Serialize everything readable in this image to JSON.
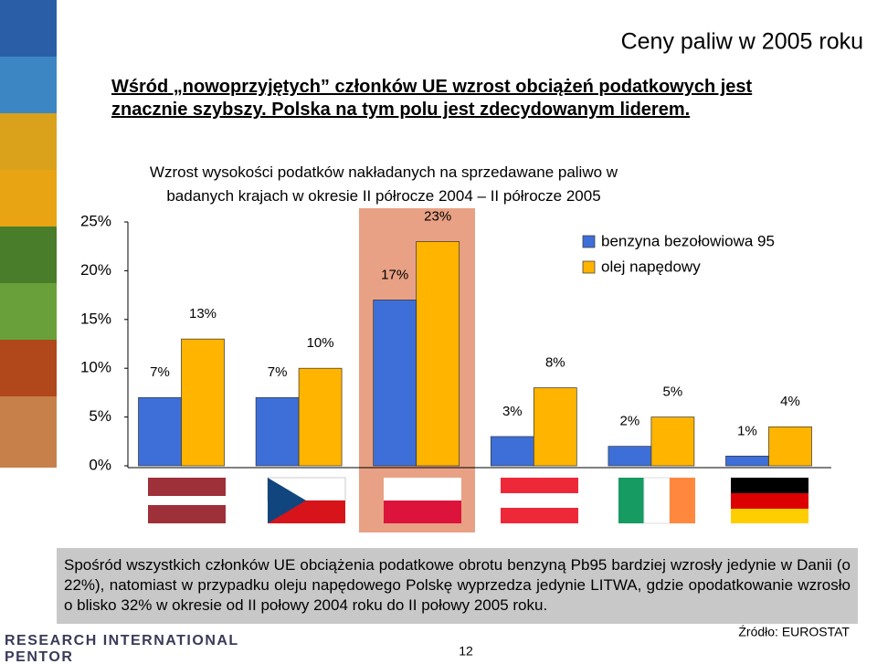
{
  "title": "Ceny paliw w 2005 roku",
  "subtitle": "Wśród „nowoprzyjętych” członków UE wzrost obciążeń podatkowych jest znacznie szybszy. Polska na tym polu jest zdecydowanym liderem.",
  "chart_data": {
    "type": "bar",
    "title": "Wzrost wysokości podatków nakładanych na sprzedawane paliwo w badanych krajach w okresie II półrocze 2004 – II półrocze 2005",
    "categories": [
      null,
      null,
      null,
      null,
      null,
      null
    ],
    "series": [
      {
        "name": "benzyna bezołowiowa 95",
        "color": "#3e6fd8",
        "values": [
          7,
          7,
          17,
          3,
          2,
          1
        ],
        "value_labels": [
          "7%",
          "7%",
          "17%",
          "3%",
          "2%",
          "1%"
        ]
      },
      {
        "name": "olej napędowy",
        "color": "#ffb400",
        "values": [
          13,
          10,
          23,
          8,
          5,
          4
        ],
        "value_labels": [
          "13%",
          "10%",
          "23%",
          "8%",
          "5%",
          "4%"
        ]
      }
    ],
    "ylim": [
      0,
      25
    ],
    "yticks": [
      {
        "value": 0,
        "label": "0%"
      },
      {
        "value": 5,
        "label": "5%"
      },
      {
        "value": 10,
        "label": "10%"
      },
      {
        "value": 15,
        "label": "15%"
      },
      {
        "value": 20,
        "label": "20%"
      },
      {
        "value": 25,
        "label": "25%"
      }
    ],
    "legend": "upper right"
  },
  "note": "Spośród wszystkich członków UE obciążenia podatkowe obrotu benzyną Pb95 bardziej wzrosły jedynie w Danii (o 22%), natomiast w przypadku oleju napędowego Polskę wyprzedza jedynie LITWA, gdzie opodatkowanie wzrosło o blisko 32% w okresie od II połowy 2004 roku do II połowy 2005 roku.",
  "source": "Źródło: EUROSTAT",
  "page_number": "12",
  "logo": [
    "RESEARCH INTERNATIONAL",
    "PENTOR"
  ]
}
